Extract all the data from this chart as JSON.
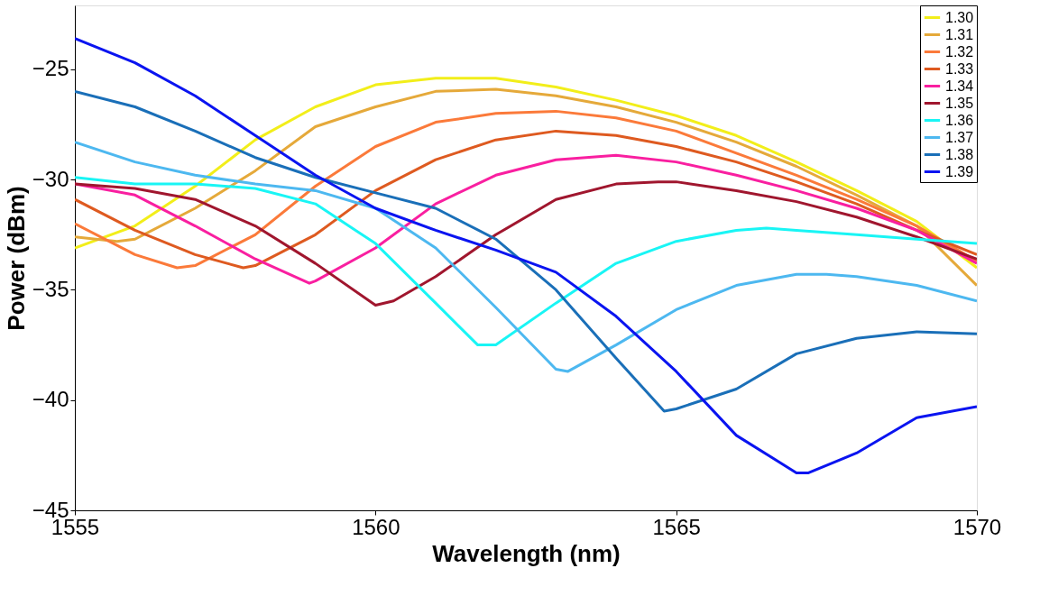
{
  "chart_data": {
    "type": "line",
    "xlabel": "Wavelength (nm)",
    "ylabel": "Power (dBm)",
    "xlim": [
      1555,
      1570
    ],
    "ylim": [
      -45,
      -22.1
    ],
    "xticks": [
      1555,
      1560,
      1565,
      1570
    ],
    "yticks": [
      -45,
      -40,
      -35,
      -30,
      -25
    ],
    "grid": false,
    "legend": "top right",
    "marker": "none",
    "line_style": "solid",
    "series": [
      {
        "name": "1.30",
        "color": "#f2ee1a",
        "x": [
          1555,
          1556,
          1557,
          1558,
          1559,
          1560,
          1561,
          1562,
          1563,
          1564,
          1565,
          1566,
          1567,
          1568,
          1569,
          1570
        ],
        "values": [
          -33.1,
          -32.1,
          -30.3,
          -28.2,
          -26.7,
          -25.7,
          -25.4,
          -25.4,
          -25.8,
          -26.4,
          -27.1,
          -28.0,
          -29.2,
          -30.5,
          -31.9,
          -34.0
        ]
      },
      {
        "name": "1.31",
        "color": "#e5a93a",
        "x": [
          1555,
          1555.7,
          1556,
          1557,
          1558,
          1559,
          1560,
          1561,
          1562,
          1563,
          1564,
          1565,
          1566,
          1567,
          1568,
          1569,
          1570
        ],
        "values": [
          -32.6,
          -32.8,
          -32.7,
          -31.3,
          -29.6,
          -27.6,
          -26.7,
          -26.0,
          -25.9,
          -26.2,
          -26.7,
          -27.4,
          -28.3,
          -29.4,
          -30.7,
          -32.1,
          -34.8
        ]
      },
      {
        "name": "1.32",
        "color": "#fb7a3a",
        "x": [
          1555,
          1556,
          1556.7,
          1557,
          1558,
          1559,
          1560,
          1561,
          1562,
          1563,
          1564,
          1565,
          1566,
          1567,
          1568,
          1569,
          1570
        ],
        "values": [
          -32.0,
          -33.4,
          -34.0,
          -33.9,
          -32.5,
          -30.3,
          -28.5,
          -27.4,
          -27.0,
          -26.9,
          -27.2,
          -27.8,
          -28.8,
          -29.8,
          -30.9,
          -32.1,
          -33.7
        ]
      },
      {
        "name": "1.33",
        "color": "#de5a20",
        "x": [
          1555,
          1556,
          1557,
          1557.8,
          1558,
          1559,
          1560,
          1561,
          1562,
          1563,
          1564,
          1565,
          1566,
          1567,
          1568,
          1569,
          1570
        ],
        "values": [
          -30.9,
          -32.3,
          -33.4,
          -34.0,
          -33.9,
          -32.5,
          -30.5,
          -29.1,
          -28.2,
          -27.8,
          -28.0,
          -28.5,
          -29.2,
          -30.1,
          -31.1,
          -32.3,
          -33.4
        ]
      },
      {
        "name": "1.34",
        "color": "#f91fa0",
        "x": [
          1555,
          1556,
          1557,
          1558,
          1558.9,
          1559,
          1560,
          1561,
          1562,
          1563,
          1564,
          1565,
          1566,
          1567,
          1568,
          1569,
          1570
        ],
        "values": [
          -30.2,
          -30.7,
          -32.1,
          -33.6,
          -34.7,
          -34.6,
          -33.1,
          -31.1,
          -29.8,
          -29.1,
          -28.9,
          -29.2,
          -29.8,
          -30.5,
          -31.3,
          -32.3,
          -33.8
        ]
      },
      {
        "name": "1.35",
        "color": "#a0162e",
        "x": [
          1555,
          1556,
          1557,
          1558,
          1559,
          1560,
          1560.3,
          1561,
          1562,
          1563,
          1564,
          1564.7,
          1565,
          1566,
          1567,
          1568,
          1569,
          1570
        ],
        "values": [
          -30.2,
          -30.4,
          -30.9,
          -32.1,
          -33.8,
          -35.7,
          -35.5,
          -34.4,
          -32.5,
          -30.9,
          -30.2,
          -30.1,
          -30.1,
          -30.5,
          -31.0,
          -31.7,
          -32.6,
          -33.6
        ]
      },
      {
        "name": "1.36",
        "color": "#19f5f5",
        "x": [
          1555,
          1556,
          1557,
          1558,
          1559,
          1560,
          1561,
          1561.7,
          1562,
          1563,
          1564,
          1565,
          1566,
          1566.5,
          1567,
          1568,
          1569,
          1570
        ],
        "values": [
          -29.9,
          -30.2,
          -30.2,
          -30.4,
          -31.1,
          -32.9,
          -35.6,
          -37.5,
          -37.5,
          -35.6,
          -33.8,
          -32.8,
          -32.3,
          -32.2,
          -32.3,
          -32.5,
          -32.7,
          -32.9
        ]
      },
      {
        "name": "1.37",
        "color": "#4db8f0",
        "x": [
          1555,
          1556,
          1557,
          1558,
          1559,
          1560,
          1561,
          1562,
          1563,
          1563.2,
          1564,
          1565,
          1566,
          1567,
          1567.5,
          1568,
          1569,
          1570
        ],
        "values": [
          -28.3,
          -29.2,
          -29.8,
          -30.2,
          -30.5,
          -31.3,
          -33.1,
          -35.8,
          -38.6,
          -38.7,
          -37.5,
          -35.9,
          -34.8,
          -34.3,
          -34.3,
          -34.4,
          -34.8,
          -35.5
        ]
      },
      {
        "name": "1.38",
        "color": "#1a6fb8",
        "x": [
          1555,
          1556,
          1557,
          1558,
          1559,
          1560,
          1561,
          1562,
          1563,
          1564,
          1564.8,
          1565,
          1566,
          1567,
          1568,
          1569,
          1570
        ],
        "values": [
          -26.0,
          -26.7,
          -27.8,
          -29.0,
          -29.9,
          -30.6,
          -31.3,
          -32.7,
          -35.0,
          -38.1,
          -40.5,
          -40.4,
          -39.5,
          -37.9,
          -37.2,
          -36.9,
          -37.0
        ]
      },
      {
        "name": "1.39",
        "color": "#0a14f0",
        "x": [
          1555,
          1556,
          1557,
          1558,
          1559,
          1560,
          1561,
          1562,
          1563,
          1564,
          1565,
          1566,
          1567,
          1567.2,
          1568,
          1569,
          1570
        ],
        "values": [
          -23.6,
          -24.7,
          -26.2,
          -28.0,
          -29.8,
          -31.3,
          -32.3,
          -33.2,
          -34.2,
          -36.2,
          -38.7,
          -41.6,
          -43.3,
          -43.3,
          -42.4,
          -40.8,
          -40.3
        ]
      }
    ]
  }
}
